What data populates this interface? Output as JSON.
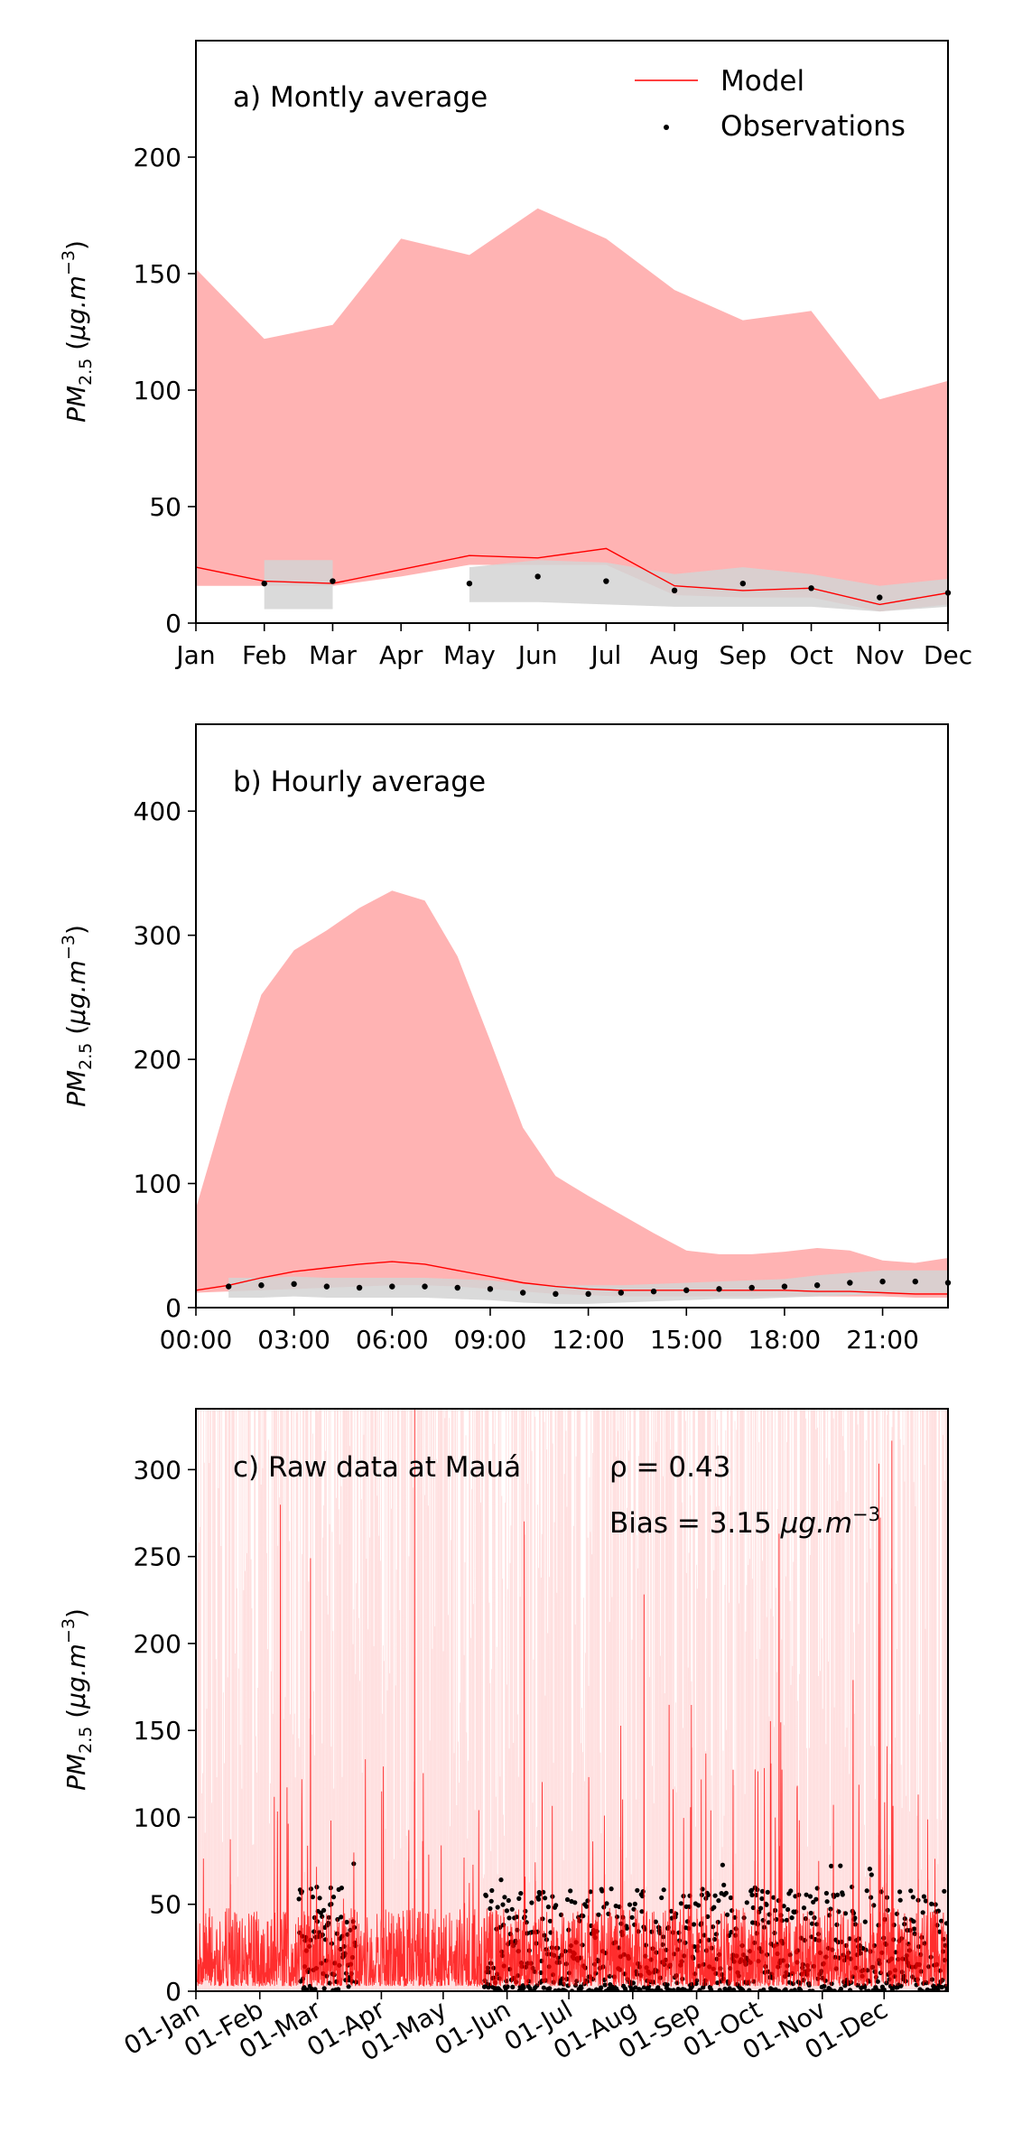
{
  "colors": {
    "model": "#ff0000",
    "model_band": "#ffb3b3",
    "obs": "#000000",
    "obs_band": "#d3d3d3"
  },
  "legend": {
    "model_label": "Model",
    "obs_label": "Observations"
  },
  "chart_data": [
    {
      "type": "line",
      "annotation": "a) Montly average",
      "ylabel": "PM2.5 (μg.m−3)",
      "x": [
        "Jan",
        "Feb",
        "Mar",
        "Apr",
        "May",
        "Jun",
        "Jul",
        "Aug",
        "Sep",
        "Oct",
        "Nov",
        "Dec"
      ],
      "ylim": [
        0,
        250
      ],
      "yticks": [
        0,
        50,
        100,
        150,
        200
      ],
      "model": [
        24,
        18,
        17,
        23,
        29,
        28,
        32,
        16,
        14,
        15,
        8,
        13
      ],
      "model_band_upper": [
        152,
        122,
        128,
        165,
        158,
        178,
        165,
        143,
        130,
        134,
        96,
        104
      ],
      "model_band_lower": [
        16,
        16,
        16,
        20,
        25,
        25,
        25,
        12,
        11,
        11,
        5,
        8
      ],
      "obs": [
        null,
        17,
        18,
        null,
        17,
        20,
        18,
        14,
        17,
        15,
        11,
        13
      ],
      "obs_band_upper": [
        null,
        27,
        27,
        null,
        24,
        27,
        26,
        21,
        24,
        21,
        16,
        19
      ],
      "obs_band_lower": [
        null,
        6,
        6,
        null,
        9,
        9,
        8,
        7,
        7,
        7,
        5,
        7
      ]
    },
    {
      "type": "line",
      "annotation": "b) Hourly average",
      "ylabel": "PM2.5 (μg.m−3)",
      "x": [
        0,
        1,
        2,
        3,
        4,
        5,
        6,
        7,
        8,
        9,
        10,
        11,
        12,
        13,
        14,
        15,
        16,
        17,
        18,
        19,
        20,
        21,
        22,
        23
      ],
      "xticks": [
        0,
        3,
        6,
        9,
        12,
        15,
        18,
        21
      ],
      "xtick_labels": [
        "00:00",
        "03:00",
        "06:00",
        "09:00",
        "12:00",
        "15:00",
        "18:00",
        "21:00"
      ],
      "xlim": [
        0,
        23
      ],
      "ylim": [
        0,
        470
      ],
      "yticks": [
        0,
        100,
        200,
        300,
        400
      ],
      "model": [
        14,
        18,
        24,
        29,
        32,
        35,
        37,
        35,
        30,
        25,
        20,
        17,
        15,
        14,
        14,
        14,
        14,
        14,
        14,
        13,
        13,
        12,
        11,
        11
      ],
      "model_band_upper": [
        80,
        170,
        252,
        288,
        304,
        322,
        336,
        328,
        283,
        215,
        145,
        106,
        90,
        75,
        60,
        46,
        43,
        43,
        45,
        48,
        46,
        38,
        36,
        40
      ],
      "model_band_lower": [
        12,
        13,
        14,
        15,
        16,
        17,
        18,
        18,
        17,
        15,
        13,
        11,
        10,
        9,
        9,
        9,
        9,
        9,
        9,
        9,
        9,
        9,
        8,
        8
      ],
      "obs": [
        null,
        17,
        18,
        19,
        17,
        16,
        17,
        17,
        16,
        15,
        12,
        11,
        11,
        12,
        13,
        14,
        15,
        16,
        17,
        18,
        20,
        21,
        21,
        20
      ],
      "obs_band_upper": [
        null,
        24,
        24,
        25,
        24,
        24,
        24,
        24,
        23,
        22,
        19,
        18,
        18,
        18,
        19,
        20,
        21,
        22,
        23,
        26,
        28,
        30,
        30,
        30
      ],
      "obs_band_lower": [
        null,
        8,
        8,
        9,
        8,
        8,
        8,
        8,
        7,
        6,
        4,
        3,
        3,
        4,
        5,
        6,
        7,
        7,
        8,
        9,
        10,
        11,
        12,
        12
      ]
    },
    {
      "type": "line",
      "annotation": "c) Raw data at Mauá",
      "stat_rho": "ρ = 0.43",
      "stat_bias_prefix": "Bias = 3.15 ",
      "stat_bias_unit": "μg.m−3",
      "ylabel": "PM2.5 (μg.m−3)",
      "xlim_days": [
        0,
        365
      ],
      "xticks_days": [
        0,
        31,
        59,
        90,
        120,
        151,
        181,
        212,
        243,
        273,
        304,
        334
      ],
      "xtick_labels": [
        "01-Jan",
        "01-Feb",
        "01-Mar",
        "01-Apr",
        "01-May",
        "01-Jun",
        "01-Jul",
        "01-Aug",
        "01-Sep",
        "01-Oct",
        "01-Nov",
        "01-Dec"
      ],
      "ylim": [
        0,
        335
      ],
      "yticks": [
        0,
        50,
        100,
        150,
        200,
        250,
        300
      ],
      "observation_periods_days": [
        [
          50,
          78
        ],
        [
          140,
          365
        ]
      ]
    }
  ]
}
